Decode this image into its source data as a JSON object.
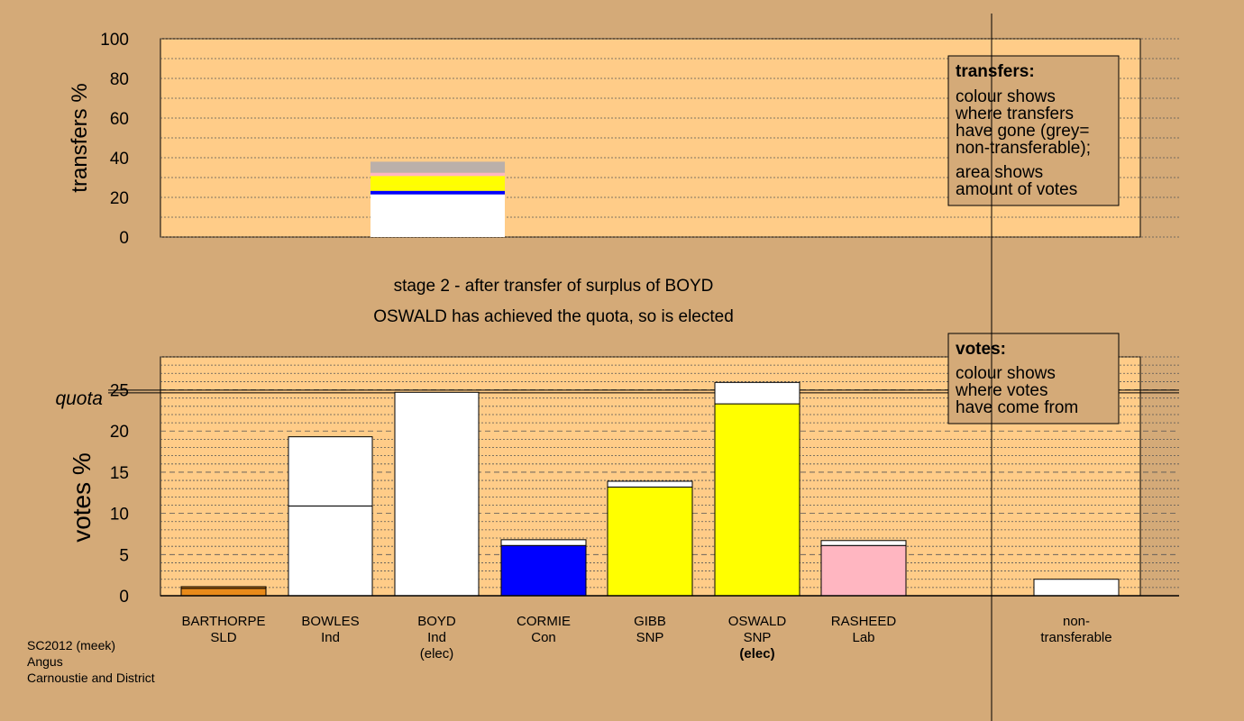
{
  "chart_data": [
    {
      "type": "bar",
      "name": "transfers",
      "ylabel": "transfers %",
      "ylim": [
        0,
        100
      ],
      "yticks": [
        0,
        20,
        40,
        60,
        80,
        100
      ],
      "grid": true,
      "bars": [
        {
          "candidate": "BOYD",
          "segments": [
            {
              "transfer_to": "BOWLES",
              "value": 21.5,
              "color": "#ffffff"
            },
            {
              "transfer_to": "CORMIE",
              "value": 1.8,
              "color": "#0000ff"
            },
            {
              "transfer_to": "GIBB",
              "value": 2.3,
              "color": "#ffff00"
            },
            {
              "transfer_to": "OSWALD",
              "value": 5.2,
              "color": "#ffff00"
            },
            {
              "transfer_to": "RASHEED",
              "value": 1.6,
              "color": "#ffb6c1"
            },
            {
              "transfer_to": "non-transferable",
              "value": 5.6,
              "color": "#bbb0aa"
            }
          ]
        }
      ],
      "legend": {
        "title": "transfers:",
        "lines": [
          "colour shows",
          "where transfers",
          "have gone (grey=",
          "non-transferable);",
          "area shows",
          "amount of votes"
        ],
        "position": "top-right"
      }
    },
    {
      "type": "bar",
      "name": "votes",
      "ylabel": "votes %",
      "ylim": [
        0,
        29
      ],
      "yticks": [
        0,
        5,
        10,
        15,
        20,
        25
      ],
      "quota": 24.8,
      "quota_label": "quota",
      "grid": true,
      "candidates": [
        {
          "name": "BARTHORPE",
          "party": "SLD",
          "elected": "",
          "bold": false,
          "segments": [
            {
              "value": 0.9,
              "color": "#e88a1a"
            },
            {
              "value": 0.2,
              "color": "#e88a1a"
            }
          ]
        },
        {
          "name": "BOWLES",
          "party": "Ind",
          "elected": "",
          "bold": false,
          "segments": [
            {
              "value": 10.9,
              "color": "#ffffff"
            },
            {
              "value": 8.4,
              "color": "#ffffff"
            }
          ]
        },
        {
          "name": "BOYD",
          "party": "Ind",
          "elected": "(elec)",
          "bold": false,
          "segments": [
            {
              "value": 24.7,
              "color": "#ffffff"
            }
          ]
        },
        {
          "name": "CORMIE",
          "party": "Con",
          "elected": "",
          "bold": false,
          "segments": [
            {
              "value": 6.1,
              "color": "#0000ff"
            },
            {
              "value": 0.7,
              "color": "#ffffff"
            }
          ]
        },
        {
          "name": "GIBB",
          "party": "SNP",
          "elected": "",
          "bold": false,
          "segments": [
            {
              "value": 13.2,
              "color": "#ffff00"
            },
            {
              "value": 0.7,
              "color": "#ffffff"
            }
          ]
        },
        {
          "name": "OSWALD",
          "party": "SNP",
          "elected": "(elec)",
          "bold": true,
          "segments": [
            {
              "value": 23.3,
              "color": "#ffff00"
            },
            {
              "value": 2.6,
              "color": "#ffffff"
            }
          ]
        },
        {
          "name": "RASHEED",
          "party": "Lab",
          "elected": "",
          "bold": false,
          "segments": [
            {
              "value": 6.1,
              "color": "#ffb6c1"
            },
            {
              "value": 0.6,
              "color": "#ffffff"
            }
          ]
        },
        {
          "name": "non-",
          "party": "transferable",
          "elected": "",
          "bold": false,
          "segments": [
            {
              "value": 2.0,
              "color": "#ffffff"
            }
          ]
        }
      ],
      "legend": {
        "title": "votes:",
        "lines": [
          "colour shows",
          "where votes",
          "have come from"
        ],
        "position": "top-right"
      }
    }
  ],
  "stage_text": {
    "line1": "stage 2 - after transfer of surplus of BOYD",
    "line2": "OSWALD has achieved the quota, so is elected"
  },
  "footer": {
    "line1": "SC2012 (meek)",
    "line2": "Angus",
    "line3": "Carnoustie and District"
  },
  "colors": {
    "background": "#d4aa78",
    "plot_background": "#ffcc88"
  }
}
